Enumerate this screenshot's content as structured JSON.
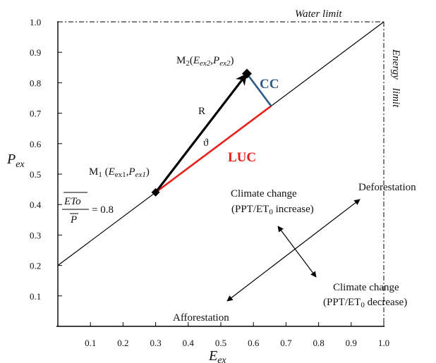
{
  "axes": {
    "x_label": "E",
    "x_label_sub": "ex",
    "y_label": "P",
    "y_label_sub": "ex",
    "x_ticks": [
      "0.1",
      "0.2",
      "0.3",
      "0.4",
      "0.5",
      "0.6",
      "0.7",
      "0.8",
      "0.9",
      "1.0"
    ],
    "y_ticks": [
      "0.1",
      "0.2",
      "0.3",
      "0.4",
      "0.5",
      "0.6",
      "0.7",
      "0.8",
      "0.9",
      "1.0"
    ]
  },
  "limits": {
    "water": "Water limit",
    "energy_1": "Energy",
    "energy_2": "limit"
  },
  "ratio": {
    "numerator": "ETo",
    "denominator": "P",
    "value": "= 0.8"
  },
  "points": {
    "m1": {
      "name": "M",
      "sub": "1",
      "open": " (",
      "e": "E",
      "e_sub": "ex1",
      "comma": ",",
      "p": "P",
      "p_sub": "ex1",
      "close": ")"
    },
    "m2": {
      "name": "M",
      "sub": "2",
      "open": "(",
      "e": "E",
      "e_sub": "ex2",
      "comma": ",",
      "p": "P",
      "p_sub": "ex2",
      "close": ")"
    }
  },
  "vectors": {
    "r": "R",
    "angle": "ϑ",
    "cc": "CC",
    "luc": "LUC"
  },
  "annotations": {
    "cc_up_1": "Climate change",
    "cc_up_2_pre": "(PPT/ET",
    "cc_up_2_sub": "0",
    "cc_up_2_post": " increase)",
    "cc_down_1": "Climate change",
    "cc_down_2_pre": "(PPT/ET",
    "cc_down_2_sub": "0",
    "cc_down_2_post": " decrease)",
    "deforestation": "Deforestation",
    "afforestation": "Afforestation"
  },
  "colors": {
    "luc": "#e8201c",
    "cc": "#2f5a86",
    "vector": "#000000"
  },
  "chart_data": {
    "type": "line",
    "xlim": [
      0,
      1.0
    ],
    "ylim": [
      0,
      1.0
    ],
    "series": [
      {
        "x": [
          0,
          1.0
        ],
        "y": [
          0.2,
          1.0
        ]
      }
    ],
    "points": [
      {
        "x": 0.3,
        "y": 0.44
      },
      {
        "x": 0.58,
        "y": 0.83
      }
    ],
    "water_limit_y": 1.0,
    "energy_limit_x": 1.0
  }
}
